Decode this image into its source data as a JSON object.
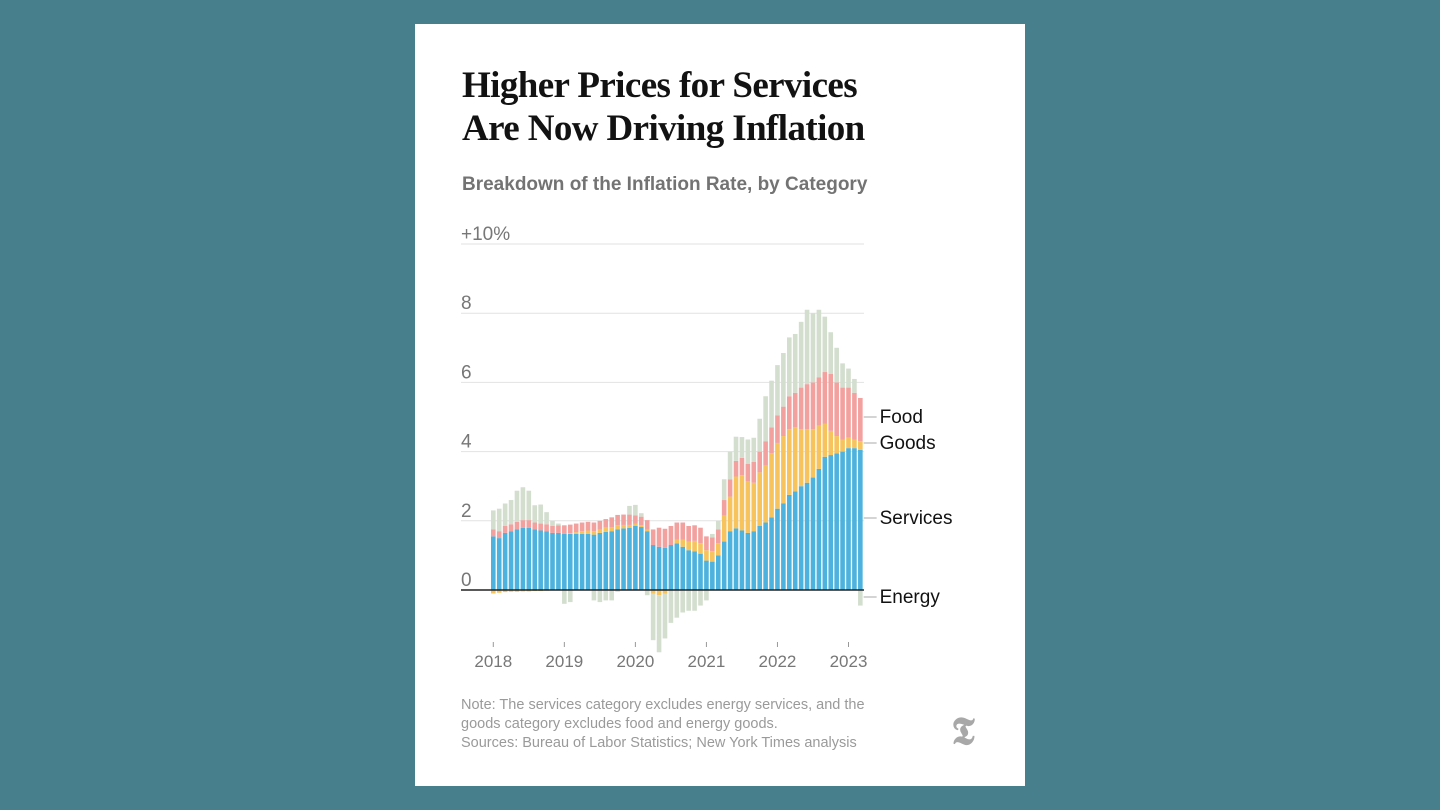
{
  "header": {
    "title_line1": "Higher Prices for Services",
    "title_line2": "Are Now Driving Inflation",
    "subtitle": "Breakdown of the Inflation Rate, by Category"
  },
  "footer": {
    "note_line1": "Note: The services category excludes energy services, and the",
    "note_line2": "goods category excludes food and energy goods.",
    "sources": "Sources: Bureau of Labor Statistics; New York Times analysis",
    "logo_icon": "nyt-t-logo-icon"
  },
  "colors": {
    "background": "#47808c",
    "services": "#4db3de",
    "goods": "#f6c35c",
    "food": "#f2a19f",
    "energy": "#d3decf",
    "grid": "#e2e2e2",
    "zero_line": "#222222",
    "tick_label": "#777777"
  },
  "chart_data": {
    "type": "bar",
    "stacked": true,
    "title": "Breakdown of the Inflation Rate, by Category",
    "xlabel": "",
    "ylabel": "",
    "ylim": [
      -1.7,
      10
    ],
    "y_ticks": [
      0,
      2,
      4,
      6,
      8,
      10
    ],
    "y_tick_labels": [
      "0",
      "2",
      "4",
      "6",
      "8",
      "+10%"
    ],
    "x_ticks": [
      "2018",
      "2019",
      "2020",
      "2021",
      "2022",
      "2023"
    ],
    "grid": true,
    "legend": "right, direct labels",
    "start": "2018-01",
    "months": 63,
    "series": [
      {
        "name": "Services",
        "values": [
          1.55,
          1.5,
          1.65,
          1.7,
          1.75,
          1.8,
          1.8,
          1.75,
          1.72,
          1.7,
          1.65,
          1.65,
          1.62,
          1.62,
          1.62,
          1.62,
          1.62,
          1.6,
          1.65,
          1.68,
          1.7,
          1.75,
          1.78,
          1.8,
          1.85,
          1.82,
          1.7,
          1.3,
          1.25,
          1.22,
          1.3,
          1.35,
          1.25,
          1.15,
          1.12,
          1.05,
          0.85,
          0.82,
          1.0,
          1.4,
          1.7,
          1.78,
          1.72,
          1.65,
          1.7,
          1.85,
          1.95,
          2.1,
          2.35,
          2.5,
          2.75,
          2.85,
          3.0,
          3.1,
          3.25,
          3.5,
          3.85,
          3.9,
          3.95,
          4.0,
          4.1,
          4.1,
          4.05
        ]
      },
      {
        "name": "Goods",
        "values": [
          -0.1,
          -0.08,
          -0.06,
          -0.05,
          -0.05,
          -0.04,
          -0.04,
          -0.03,
          -0.03,
          -0.02,
          0.0,
          0.0,
          0.0,
          0.02,
          0.05,
          0.08,
          0.1,
          0.1,
          0.1,
          0.12,
          0.12,
          0.12,
          0.1,
          0.08,
          0.06,
          0.05,
          0.04,
          -0.1,
          -0.15,
          -0.1,
          0.0,
          0.1,
          0.2,
          0.25,
          0.3,
          0.3,
          0.3,
          0.3,
          0.35,
          0.75,
          1.0,
          1.5,
          1.6,
          1.5,
          1.4,
          1.55,
          1.65,
          1.85,
          1.9,
          1.95,
          1.9,
          1.85,
          1.65,
          1.55,
          1.4,
          1.25,
          0.95,
          0.7,
          0.5,
          0.35,
          0.3,
          0.25,
          0.25
        ]
      },
      {
        "name": "Food",
        "values": [
          0.2,
          0.2,
          0.2,
          0.2,
          0.22,
          0.22,
          0.22,
          0.2,
          0.2,
          0.2,
          0.2,
          0.22,
          0.25,
          0.25,
          0.25,
          0.25,
          0.25,
          0.25,
          0.25,
          0.25,
          0.28,
          0.3,
          0.3,
          0.3,
          0.25,
          0.25,
          0.28,
          0.45,
          0.55,
          0.55,
          0.55,
          0.5,
          0.5,
          0.45,
          0.45,
          0.45,
          0.4,
          0.4,
          0.4,
          0.45,
          0.5,
          0.45,
          0.5,
          0.5,
          0.6,
          0.6,
          0.7,
          0.75,
          0.8,
          0.85,
          0.95,
          1.0,
          1.2,
          1.3,
          1.35,
          1.4,
          1.5,
          1.65,
          1.55,
          1.5,
          1.45,
          1.35,
          1.25
        ]
      },
      {
        "name": "Energy",
        "values": [
          0.55,
          0.65,
          0.65,
          0.7,
          0.9,
          0.95,
          0.85,
          0.5,
          0.55,
          0.35,
          0.15,
          0.05,
          -0.4,
          -0.35,
          0.0,
          0.0,
          0.0,
          -0.3,
          -0.35,
          -0.3,
          -0.3,
          -0.05,
          0.0,
          0.25,
          0.3,
          0.1,
          -0.15,
          -1.35,
          -1.65,
          -1.3,
          -0.95,
          -0.8,
          -0.65,
          -0.6,
          -0.6,
          -0.45,
          -0.3,
          0.1,
          0.25,
          0.6,
          0.8,
          0.7,
          0.6,
          0.7,
          0.7,
          0.95,
          1.3,
          1.35,
          1.45,
          1.55,
          1.7,
          1.7,
          1.9,
          2.15,
          2.0,
          1.95,
          1.6,
          1.2,
          1.0,
          0.7,
          0.55,
          0.4,
          -0.45
        ]
      }
    ],
    "series_labels": [
      "Food",
      "Goods",
      "Services",
      "Energy"
    ]
  }
}
